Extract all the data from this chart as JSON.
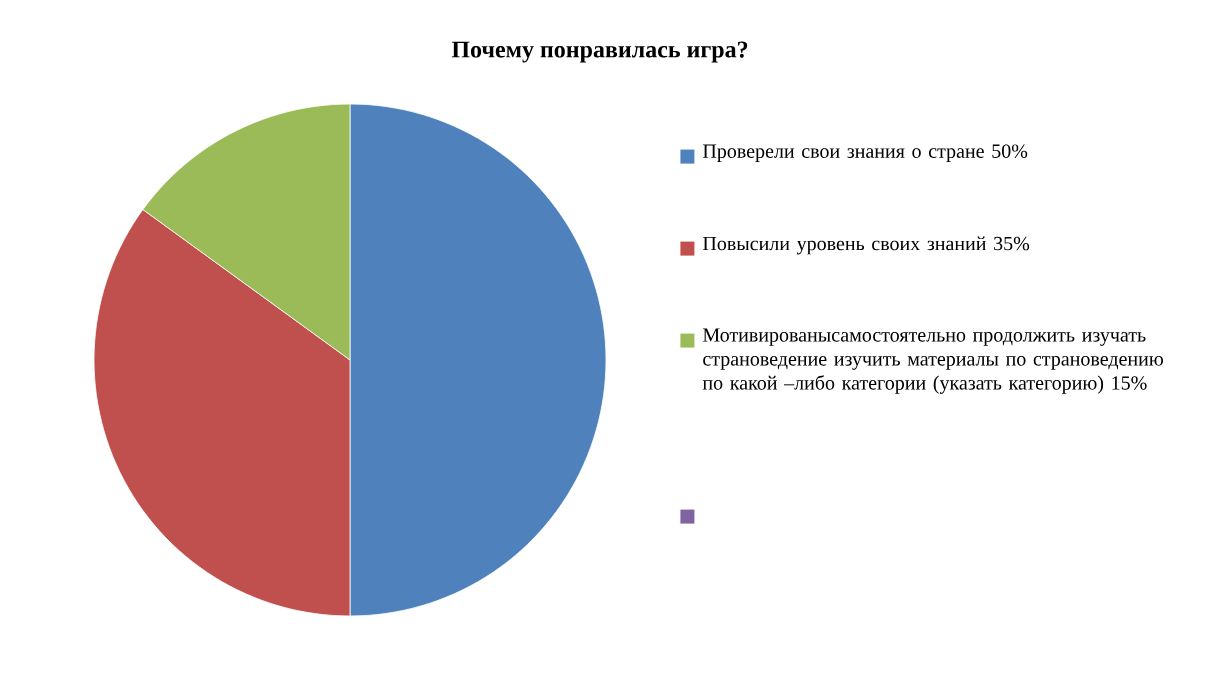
{
  "chart_data": {
    "type": "pie",
    "title": "Почему понравилась игра?",
    "categories": [
      "Проверели свои знания о стране 50%",
      "Повысили уровень своих знаний 35%",
      "Мотивированысамостоятельно продолжить изучать страноведение изучить материалы по страноведению по какой –либо категории (указать категорию) 15%",
      null
    ],
    "values": [
      50,
      35,
      15,
      0
    ],
    "colors": [
      "#4f81bd",
      "#c0504d",
      "#9bbb59",
      "#8064a2"
    ],
    "legend": "right"
  }
}
